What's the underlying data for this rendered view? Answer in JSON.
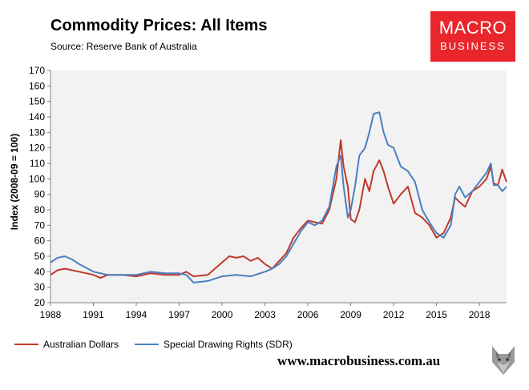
{
  "chart_data": {
    "type": "line",
    "title": "Commodity Prices: All Items",
    "subtitle": "Source: Reserve Bank of Australia",
    "xlabel": "",
    "ylabel": "Index (2008-09 = 100)",
    "xlim": [
      1988,
      2019.9
    ],
    "ylim": [
      20,
      170
    ],
    "yticks": [
      20,
      30,
      40,
      50,
      60,
      70,
      80,
      90,
      100,
      110,
      120,
      130,
      140,
      150,
      160,
      170
    ],
    "xticks": [
      1988,
      1991,
      1994,
      1997,
      2000,
      2003,
      2006,
      2009,
      2012,
      2015,
      2018
    ],
    "grid": false,
    "legend_position": "bottom",
    "series": [
      {
        "name": "Australian Dollars",
        "color": "#c0392b",
        "x": [
          1988,
          1988.5,
          1989,
          1990,
          1991,
          1991.5,
          1992,
          1993,
          1994,
          1995,
          1996,
          1997,
          1997.5,
          1998,
          1999,
          2000,
          2000.5,
          2001,
          2001.5,
          2002,
          2002.5,
          2003,
          2003.5,
          2004,
          2004.5,
          2005,
          2005.5,
          2006,
          2006.5,
          2007,
          2007.5,
          2008,
          2008.3,
          2008.5,
          2008.8,
          2009,
          2009.3,
          2009.6,
          2010,
          2010.3,
          2010.6,
          2011,
          2011.3,
          2011.6,
          2012,
          2012.5,
          2013,
          2013.5,
          2014,
          2014.5,
          2015,
          2015.5,
          2016,
          2016.3,
          2016.6,
          2017,
          2017.5,
          2018,
          2018.5,
          2018.8,
          2019,
          2019.3,
          2019.6,
          2019.9
        ],
        "values": [
          38,
          41,
          42,
          40,
          38,
          36,
          38,
          38,
          37,
          39,
          38,
          38,
          40,
          37,
          38,
          46,
          50,
          49,
          50,
          47,
          49,
          45,
          42,
          47,
          52,
          62,
          68,
          73,
          72,
          71,
          80,
          100,
          125,
          108,
          95,
          74,
          72,
          80,
          100,
          92,
          105,
          112,
          105,
          95,
          84,
          90,
          95,
          78,
          75,
          70,
          62,
          65,
          75,
          88,
          85,
          82,
          92,
          95,
          100,
          108,
          97,
          96,
          106,
          98
        ]
      },
      {
        "name": "Special Drawing Rights (SDR)",
        "color": "#4a7fc1",
        "x": [
          1988,
          1988.5,
          1989,
          1989.5,
          1990,
          1991,
          1992,
          1993,
          1994,
          1995,
          1996,
          1997,
          1997.5,
          1998,
          1999,
          2000,
          2001,
          2002,
          2003,
          2003.5,
          2004,
          2004.5,
          2005,
          2005.5,
          2006,
          2006.5,
          2007,
          2007.5,
          2008,
          2008.3,
          2008.5,
          2008.8,
          2009,
          2009.3,
          2009.6,
          2010,
          2010.3,
          2010.6,
          2011,
          2011.3,
          2011.6,
          2012,
          2012.5,
          2013,
          2013.5,
          2014,
          2014.5,
          2015,
          2015.5,
          2016,
          2016.3,
          2016.6,
          2017,
          2017.5,
          2018,
          2018.5,
          2018.8,
          2019,
          2019.3,
          2019.6,
          2019.9
        ],
        "values": [
          46,
          49,
          50,
          48,
          45,
          40,
          38,
          38,
          38,
          40,
          39,
          39,
          38,
          33,
          34,
          37,
          38,
          37,
          40,
          42,
          45,
          50,
          58,
          66,
          72,
          70,
          73,
          82,
          108,
          115,
          95,
          75,
          80,
          95,
          115,
          120,
          130,
          142,
          143,
          130,
          122,
          120,
          108,
          105,
          98,
          80,
          72,
          65,
          62,
          70,
          90,
          95,
          88,
          92,
          98,
          104,
          110,
          96,
          96,
          92,
          95
        ]
      }
    ]
  },
  "logo": {
    "top": "MACRO",
    "bottom": "BUSINESS",
    "color": "#e8262b"
  },
  "footer": {
    "website": "www.macrobusiness.com.au"
  }
}
